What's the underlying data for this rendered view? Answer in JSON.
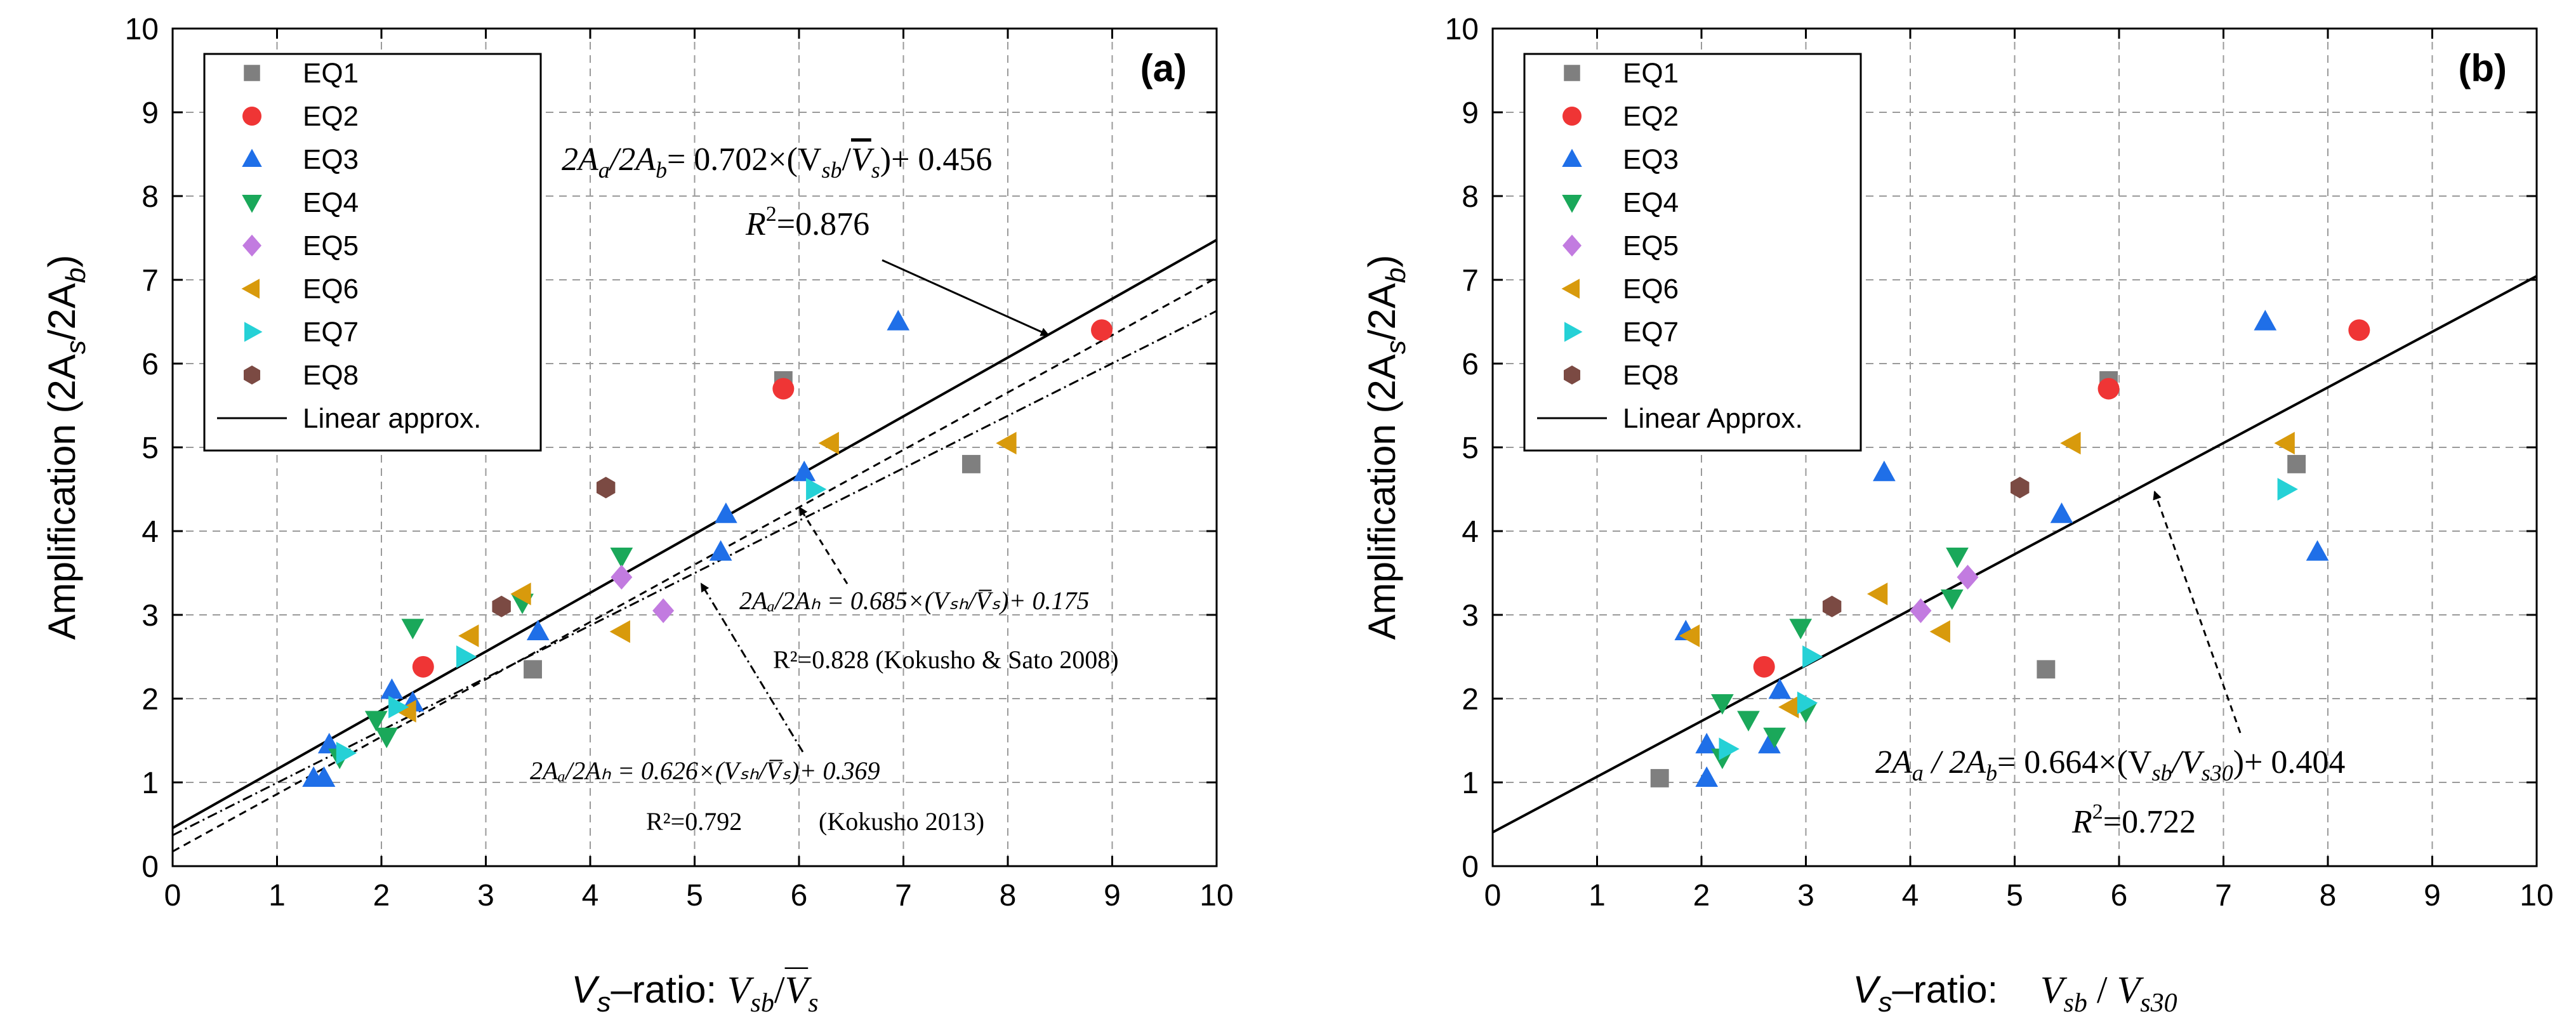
{
  "colors": {
    "EQ1": "#7f7f7f",
    "EQ2": "#ef3535",
    "EQ3": "#1f6fe8",
    "EQ4": "#1aa85a",
    "EQ5": "#c27be0",
    "EQ6": "#d89a0c",
    "EQ7": "#25d1d6",
    "EQ8": "#7b4a43"
  },
  "series_style": [
    {
      "name": "EQ1",
      "marker": "square"
    },
    {
      "name": "EQ2",
      "marker": "circle"
    },
    {
      "name": "EQ3",
      "marker": "triangle-up"
    },
    {
      "name": "EQ4",
      "marker": "triangle-down"
    },
    {
      "name": "EQ5",
      "marker": "diamond"
    },
    {
      "name": "EQ6",
      "marker": "triangle-left"
    },
    {
      "name": "EQ7",
      "marker": "triangle-right"
    },
    {
      "name": "EQ8",
      "marker": "hexagon"
    }
  ],
  "chart_data": [
    {
      "type": "scatter",
      "panel": "(a)",
      "xlabel_prefix": "V",
      "xlabel_sub": "s",
      "xlabel_mid": "–ratio: ",
      "xlabel_formula_v": "V",
      "xlabel_formula_sb": "sb",
      "xlabel_formula_slash": "/",
      "xlabel_formula_vbar": "V",
      "xlabel_formula_s": "s",
      "ylabel_main": "Amplification (2A",
      "ylabel_sub1": "s",
      "ylabel_mid": "/2A",
      "ylabel_sub2": "b",
      "ylabel_end": ")",
      "xlim": [
        0,
        10
      ],
      "ylim": [
        0,
        10
      ],
      "xticks": [
        "0",
        "1",
        "2",
        "3",
        "4",
        "5",
        "6",
        "7",
        "8",
        "9",
        "10"
      ],
      "yticks": [
        "0",
        "1",
        "2",
        "3",
        "4",
        "5",
        "6",
        "7",
        "8",
        "9",
        "10"
      ],
      "legend": [
        "EQ1",
        "EQ2",
        "EQ3",
        "EQ4",
        "EQ5",
        "EQ6",
        "EQ7",
        "EQ8"
      ],
      "legend_line_label": "Linear approx.",
      "legend_location": "top-left",
      "series": [
        {
          "name": "EQ1",
          "points": [
            [
              3.45,
              2.35
            ],
            [
              5.85,
              5.8
            ],
            [
              7.65,
              4.8
            ]
          ]
        },
        {
          "name": "EQ2",
          "points": [
            [
              2.4,
              2.38
            ],
            [
              5.85,
              5.7
            ],
            [
              8.9,
              6.4
            ]
          ]
        },
        {
          "name": "EQ3",
          "points": [
            [
              1.35,
              1.05
            ],
            [
              1.45,
              1.05
            ],
            [
              1.5,
              1.45
            ],
            [
              2.1,
              2.1
            ],
            [
              2.3,
              1.95
            ],
            [
              3.5,
              2.8
            ],
            [
              5.25,
              3.75
            ],
            [
              5.3,
              4.2
            ],
            [
              6.05,
              4.7
            ],
            [
              6.95,
              6.5
            ]
          ]
        },
        {
          "name": "EQ4",
          "points": [
            [
              1.6,
              1.3
            ],
            [
              1.95,
              1.75
            ],
            [
              2.05,
              1.55
            ],
            [
              2.3,
              2.85
            ],
            [
              3.35,
              3.15
            ],
            [
              4.3,
              3.7
            ]
          ]
        },
        {
          "name": "EQ5",
          "points": [
            [
              4.3,
              3.45
            ],
            [
              4.7,
              3.05
            ]
          ]
        },
        {
          "name": "EQ6",
          "points": [
            [
              2.25,
              1.85
            ],
            [
              2.85,
              2.75
            ],
            [
              3.35,
              3.25
            ],
            [
              4.3,
              2.8
            ],
            [
              6.3,
              5.05
            ],
            [
              8.0,
              5.05
            ]
          ]
        },
        {
          "name": "EQ7",
          "points": [
            [
              1.65,
              1.35
            ],
            [
              2.15,
              1.9
            ],
            [
              2.8,
              2.5
            ],
            [
              6.15,
              4.5
            ]
          ]
        },
        {
          "name": "EQ8",
          "points": [
            [
              3.15,
              3.1
            ],
            [
              4.15,
              4.52
            ]
          ]
        }
      ],
      "fit_lines": [
        {
          "slope": 0.702,
          "intercept": 0.456,
          "style": "solid"
        },
        {
          "slope": 0.685,
          "intercept": 0.175,
          "style": "dashed"
        },
        {
          "slope": 0.626,
          "intercept": 0.369,
          "style": "dashdot"
        }
      ],
      "annotations": {
        "main_eq_lhs": "2A",
        "main_eq_sub_a": "a",
        "main_eq_slash": "/2A",
        "main_eq_sub_b": "b",
        "main_eq_rhs_prefix": "= 0.702×(V",
        "main_eq_sub_sb": "sb",
        "main_eq_div": "/",
        "main_eq_vbar": "V",
        "main_eq_sub_s": "s",
        "main_eq_rhs_suffix": ")+ 0.456",
        "main_r2_label": "R",
        "main_r2_sup": "2",
        "main_r2_value": "=0.876",
        "kokusho_sato_eq": "2Aₐ/2Aₕ = 0.685×(Vₛₕ/V̅ₛ)+ 0.175",
        "kokusho_sato_r2": "R²=0.828 (Kokusho & Sato 2008)",
        "kokusho_eq": "2Aₐ/2Aₕ = 0.626×(Vₛₕ/V̅ₛ)+ 0.369",
        "kokusho_r2": "R²=0.792",
        "kokusho_ref": "(Kokusho 2013)"
      }
    },
    {
      "type": "scatter",
      "panel": "(b)",
      "xlabel_prefix": "V",
      "xlabel_sub": "s",
      "xlabel_mid": "–ratio:    ",
      "xlabel_formula_v": "V",
      "xlabel_formula_sb": "sb",
      "xlabel_formula_slash": " / ",
      "xlabel_formula_v2": "V",
      "xlabel_formula_s30": "s30",
      "ylabel_main": "Amplification (2A",
      "ylabel_sub1": "s",
      "ylabel_mid": "/2A",
      "ylabel_sub2": "b",
      "ylabel_end": ")",
      "xlim": [
        0,
        10
      ],
      "ylim": [
        0,
        10
      ],
      "xticks": [
        "0",
        "1",
        "2",
        "3",
        "4",
        "5",
        "6",
        "7",
        "8",
        "9",
        "10"
      ],
      "yticks": [
        "0",
        "1",
        "2",
        "3",
        "4",
        "5",
        "6",
        "7",
        "8",
        "9",
        "10"
      ],
      "legend": [
        "EQ1",
        "EQ2",
        "EQ3",
        "EQ4",
        "EQ5",
        "EQ6",
        "EQ7",
        "EQ8"
      ],
      "legend_line_label": "Linear Approx.",
      "legend_location": "top-left",
      "series": [
        {
          "name": "EQ1",
          "points": [
            [
              1.6,
              1.05
            ],
            [
              5.3,
              2.35
            ],
            [
              5.9,
              5.8
            ],
            [
              7.7,
              4.8
            ]
          ]
        },
        {
          "name": "EQ2",
          "points": [
            [
              2.6,
              2.38
            ],
            [
              5.9,
              5.7
            ],
            [
              8.3,
              6.4
            ]
          ]
        },
        {
          "name": "EQ3",
          "points": [
            [
              1.85,
              2.8
            ],
            [
              2.05,
              1.45
            ],
            [
              2.05,
              1.05
            ],
            [
              2.65,
              1.45
            ],
            [
              2.75,
              2.1
            ],
            [
              3.75,
              4.7
            ],
            [
              5.45,
              4.2
            ],
            [
              7.4,
              6.5
            ],
            [
              7.9,
              3.75
            ]
          ]
        },
        {
          "name": "EQ4",
          "points": [
            [
              2.2,
              1.95
            ],
            [
              2.2,
              1.3
            ],
            [
              2.45,
              1.75
            ],
            [
              2.7,
              1.55
            ],
            [
              2.95,
              2.85
            ],
            [
              3.0,
              1.85
            ],
            [
              4.4,
              3.2
            ],
            [
              4.45,
              3.7
            ]
          ]
        },
        {
          "name": "EQ5",
          "points": [
            [
              4.1,
              3.05
            ],
            [
              4.55,
              3.45
            ]
          ]
        },
        {
          "name": "EQ6",
          "points": [
            [
              1.9,
              2.75
            ],
            [
              2.85,
              1.9
            ],
            [
              3.7,
              3.25
            ],
            [
              4.3,
              2.8
            ],
            [
              5.55,
              5.05
            ],
            [
              7.6,
              5.05
            ]
          ]
        },
        {
          "name": "EQ7",
          "points": [
            [
              2.25,
              1.4
            ],
            [
              3.0,
              1.95
            ],
            [
              3.05,
              2.5
            ],
            [
              7.6,
              4.5
            ]
          ]
        },
        {
          "name": "EQ8",
          "points": [
            [
              3.25,
              3.1
            ],
            [
              5.05,
              4.52
            ]
          ]
        }
      ],
      "fit_lines": [
        {
          "slope": 0.664,
          "intercept": 0.404,
          "style": "solid"
        }
      ],
      "annotations": {
        "main_eq_lhs": "2A",
        "main_eq_sub_a": "a",
        "main_eq_slash": " / 2A",
        "main_eq_sub_b": "b",
        "main_eq_rhs_prefix": "= 0.664×(V",
        "main_eq_sub_sb": "sb",
        "main_eq_div": "/V",
        "main_eq_sub_s30": "s30",
        "main_eq_rhs_suffix": ")+ 0.404",
        "main_r2_label": "R",
        "main_r2_sup": "2",
        "main_r2_value": "=0.722"
      }
    }
  ]
}
